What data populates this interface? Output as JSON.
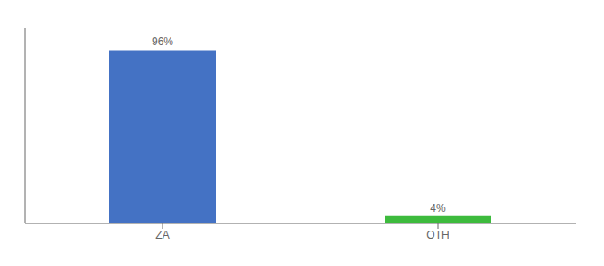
{
  "chart_data": {
    "type": "bar",
    "categories": [
      "ZA",
      "OTH"
    ],
    "values": [
      96,
      4
    ],
    "value_labels": [
      "96%",
      "4%"
    ],
    "colors": [
      "#4472c4",
      "#3dbb3d"
    ],
    "ylim": [
      0,
      108
    ],
    "data_labels": true,
    "tick_labels": "x",
    "grid": false
  }
}
